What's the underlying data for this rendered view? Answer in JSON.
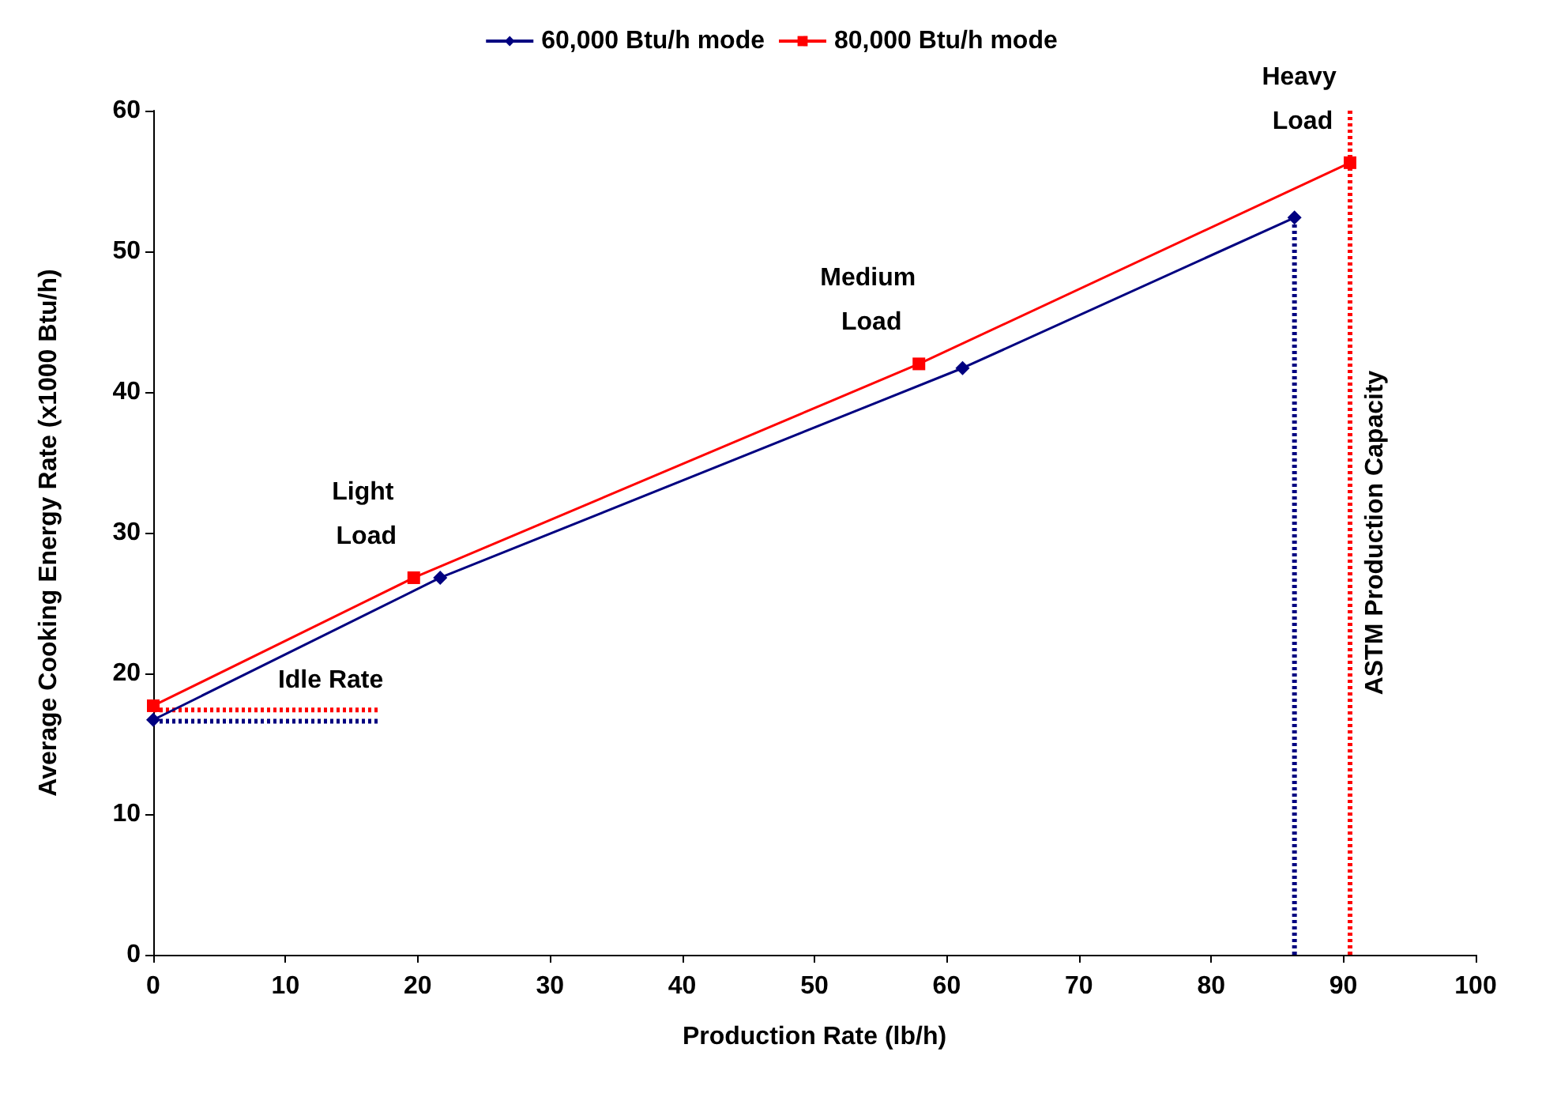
{
  "chart_data": {
    "type": "line",
    "xlabel": "Production Rate (lb/h)",
    "ylabel": "Average Cooking Energy Rate (x1000 Btu/h)",
    "xlim": [
      0,
      100
    ],
    "xticks": [
      0,
      10,
      20,
      30,
      40,
      50,
      60,
      70,
      80,
      90,
      100
    ],
    "ylim": [
      0,
      60
    ],
    "yticks": [
      0,
      10,
      20,
      30,
      40,
      50,
      60
    ],
    "grid": false,
    "legend": "top",
    "marker": "diamond",
    "series": [
      {
        "name": "60,000 Btu/h mode",
        "color": "#000080",
        "x": [
          0,
          21.7,
          61.2,
          86.3
        ],
        "values": [
          16.7,
          26.8,
          41.7,
          52.4
        ]
      },
      {
        "name": "80,000 Btu/h mode",
        "color": "#ff0000",
        "marker": "square",
        "x": [
          0,
          19.7,
          57.9,
          90.5
        ],
        "values": [
          17.7,
          26.8,
          42.0,
          56.3
        ]
      },
      {
        "color": "#000080",
        "line_style": "dotted",
        "marker": "none",
        "x": [
          0,
          17
        ],
        "values": [
          16.6,
          16.6
        ]
      },
      {
        "color": "#ff0000",
        "line_style": "dotted",
        "marker": "none",
        "x": [
          0,
          17
        ],
        "values": [
          17.4,
          17.4
        ]
      },
      {
        "color": "#000080",
        "line_style": "dotted",
        "marker": "none",
        "x": [
          86.3,
          86.3
        ],
        "values": [
          0,
          52.4
        ]
      }
    ],
    "ref_lines": [
      {
        "axis": "x",
        "value": 90.5,
        "label": "ASTM Production Capacity",
        "color": "#ff0000",
        "line_style": "dotted"
      }
    ],
    "annotations": [
      {
        "text": "Light Load",
        "x": 19.7,
        "y": 26.8
      },
      {
        "text": "Medium Load",
        "x": 57.9,
        "y": 42.0
      },
      {
        "text": "Heavy Load",
        "x": 90.5,
        "y": 56.3
      },
      {
        "text": "Idle Rate",
        "x": 17,
        "y": 16.6
      }
    ]
  }
}
